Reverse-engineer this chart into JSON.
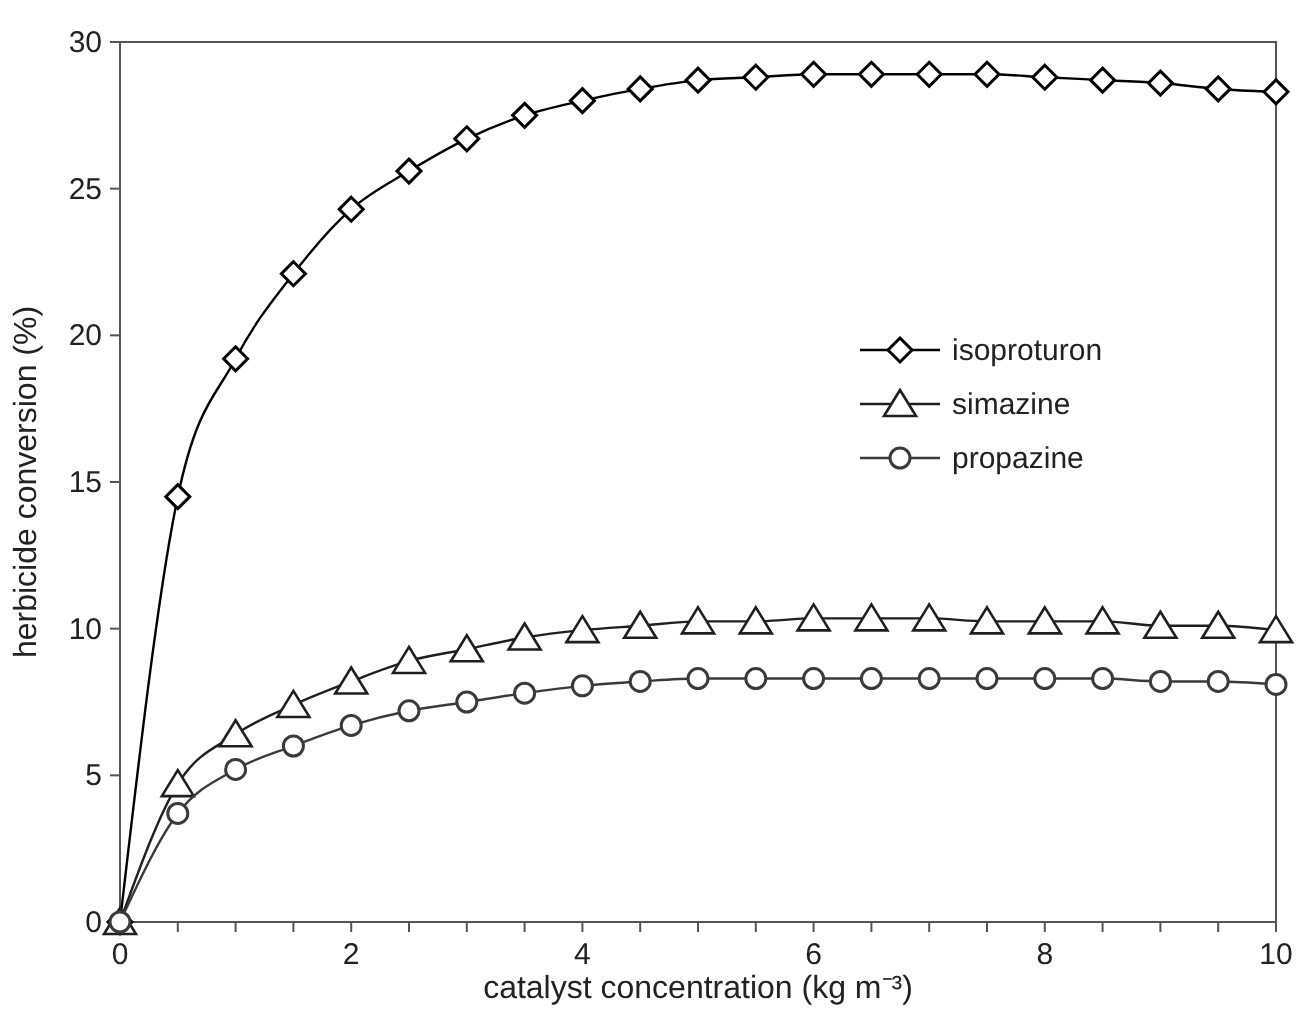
{
  "chart_data": {
    "type": "line",
    "xlabel": "catalyst concentration (kg m⁻³)",
    "ylabel": "herbicide conversion (%)",
    "x": [
      0,
      0.5,
      1,
      1.5,
      2,
      2.5,
      3,
      3.5,
      4,
      4.5,
      5,
      5.5,
      6,
      6.5,
      7,
      7.5,
      8,
      8.5,
      9,
      9.5,
      10
    ],
    "series": [
      {
        "name": "isoproturon",
        "color": "#000000",
        "marker": "diamond",
        "values": [
          0,
          14.5,
          19.2,
          22.1,
          24.3,
          25.6,
          26.7,
          27.5,
          28.0,
          28.4,
          28.7,
          28.8,
          28.9,
          28.9,
          28.9,
          28.9,
          28.8,
          28.7,
          28.6,
          28.4,
          28.3
        ]
      },
      {
        "name": "simazine",
        "color": "#1f1f1f",
        "marker": "triangle",
        "values": [
          0,
          4.7,
          6.4,
          7.4,
          8.2,
          8.9,
          9.3,
          9.7,
          9.95,
          10.1,
          10.25,
          10.25,
          10.35,
          10.35,
          10.35,
          10.25,
          10.25,
          10.25,
          10.1,
          10.1,
          9.95
        ]
      },
      {
        "name": "propazine",
        "color": "#3a3a3a",
        "marker": "circle",
        "values": [
          0,
          3.7,
          5.2,
          6.0,
          6.7,
          7.2,
          7.5,
          7.8,
          8.05,
          8.2,
          8.3,
          8.3,
          8.3,
          8.3,
          8.3,
          8.3,
          8.3,
          8.3,
          8.2,
          8.2,
          8.1
        ]
      }
    ],
    "xlim": [
      0,
      10
    ],
    "ylim": [
      0,
      30
    ],
    "xticks": [
      0,
      {
        "value": 0.5,
        "label": null
      },
      2,
      {
        "value": 1,
        "label": null
      },
      {
        "value": 1.5,
        "label": null
      },
      {
        "value": 2.5,
        "label": null
      },
      {
        "value": 3,
        "label": null
      },
      {
        "value": 3.5,
        "label": null
      },
      4,
      {
        "value": 4.5,
        "label": null
      },
      {
        "value": 5,
        "label": null
      },
      {
        "value": 5.5,
        "label": null
      },
      6,
      {
        "value": 6.5,
        "label": null
      },
      {
        "value": 7,
        "label": null
      },
      {
        "value": 7.5,
        "label": null
      },
      8,
      {
        "value": 8.5,
        "label": null
      },
      {
        "value": 9,
        "label": null
      },
      {
        "value": 9.5,
        "label": null
      },
      10
    ],
    "yticks": [
      0,
      5,
      10,
      15,
      20,
      25,
      30
    ],
    "grid": false,
    "legend": "right",
    "line_style": "solid"
  }
}
